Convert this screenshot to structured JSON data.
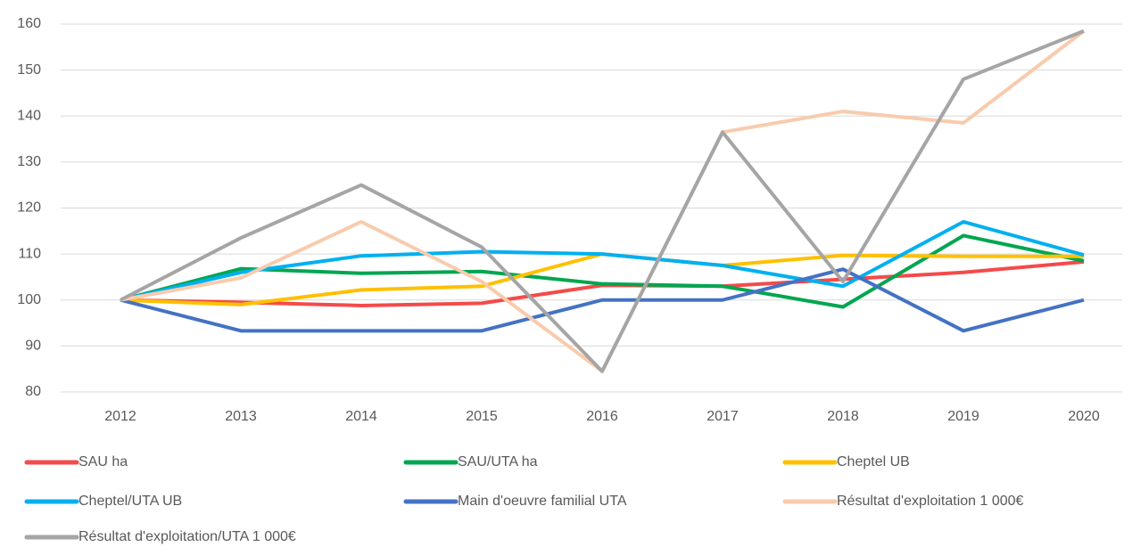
{
  "chart_data": {
    "type": "line",
    "categories": [
      "2012",
      "2013",
      "2014",
      "2015",
      "2016",
      "2017",
      "2018",
      "2019",
      "2020"
    ],
    "ylim": [
      80,
      160
    ],
    "yticks": [
      80,
      90,
      100,
      110,
      120,
      130,
      140,
      150,
      160
    ],
    "grid": true,
    "series": [
      {
        "name": "SAU ha",
        "color": "#f44a4a",
        "values": [
          100,
          99.5,
          98.8,
          99.3,
          103.2,
          103,
          104.5,
          106,
          108.3
        ]
      },
      {
        "name": "SAU/UTA ha",
        "color": "#00a650",
        "values": [
          100,
          106.8,
          105.8,
          106.2,
          103.5,
          103,
          98.5,
          114,
          108.5
        ]
      },
      {
        "name": "Cheptel UB",
        "color": "#ffc000",
        "values": [
          100,
          99,
          102.2,
          103,
          110,
          107.5,
          109.7,
          109.5,
          109.5
        ]
      },
      {
        "name": "Cheptel/UTA UB",
        "color": "#00b0f0",
        "values": [
          100,
          106,
          109.6,
          110.5,
          110,
          107.5,
          103,
          117,
          109.8
        ]
      },
      {
        "name": "Main d'oeuvre familial UTA",
        "color": "#4472c4",
        "values": [
          100,
          93.3,
          93.3,
          93.3,
          100,
          100,
          106.7,
          93.3,
          100
        ]
      },
      {
        "name": "Résultat d'exploitation 1 000€",
        "color": "#f8cbad",
        "values": [
          100,
          104.8,
          117,
          104,
          84.5,
          136.5,
          141,
          138.5,
          158.5
        ]
      },
      {
        "name": "Résultat d'exploitation/UTA 1 000€",
        "color": "#a5a5a5",
        "values": [
          100,
          113.5,
          125,
          111.5,
          84.5,
          136.5,
          104,
          148,
          158.5
        ]
      }
    ]
  }
}
